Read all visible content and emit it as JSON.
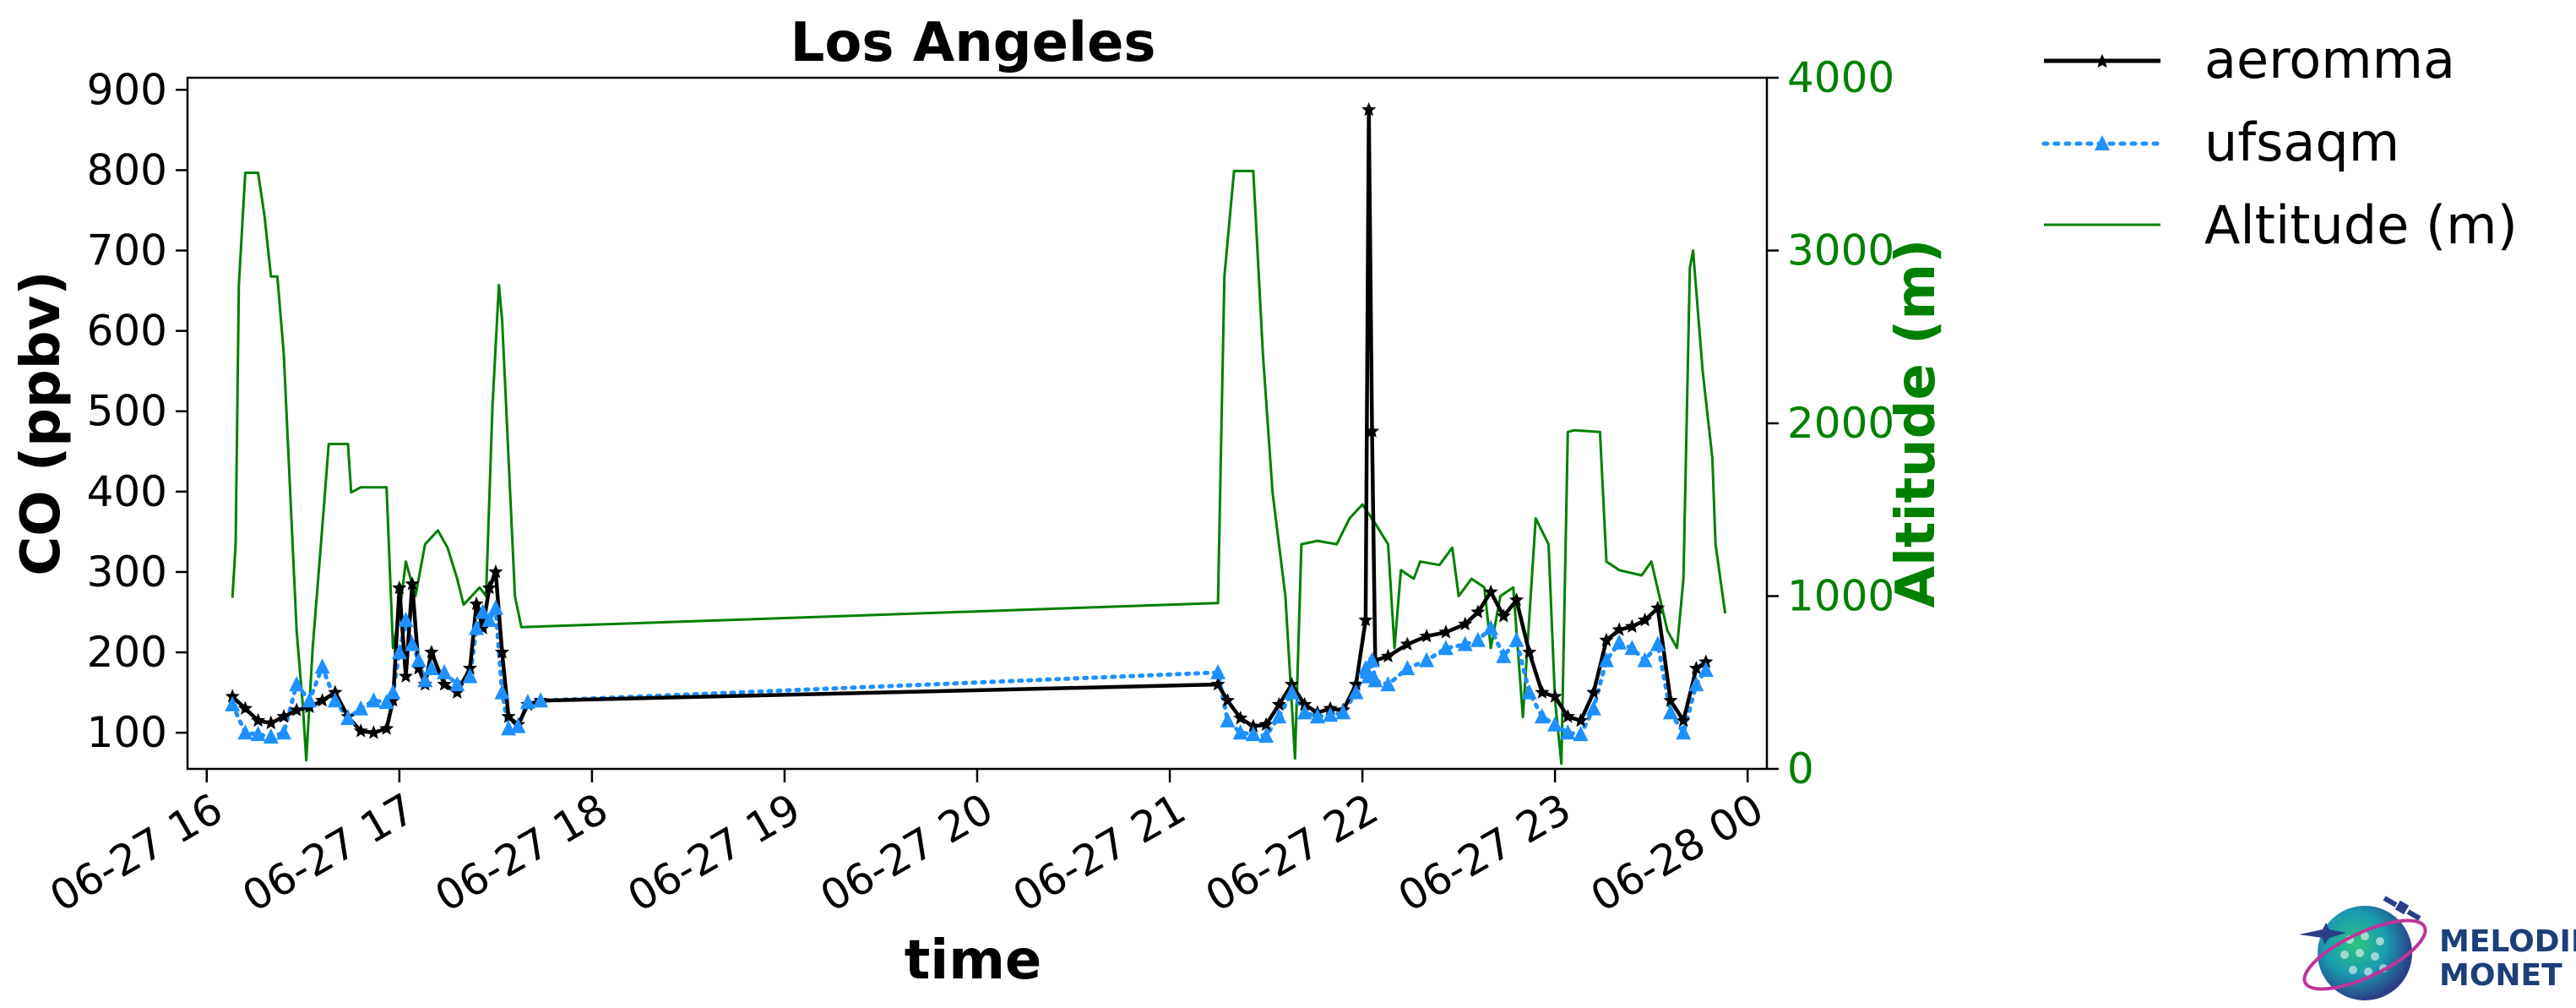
{
  "chart_data": {
    "type": "line",
    "title": "Los Angeles",
    "xlabel": "time",
    "ylabel": "CO (ppbv)",
    "y2label": "Altitude (m)",
    "xlim": [
      "06-27 15:54",
      "06-28 00:06"
    ],
    "ylim": [
      55,
      915
    ],
    "y2lim": [
      0,
      4000
    ],
    "x_ticks": [
      "06-27 16",
      "06-27 17",
      "06-27 18",
      "06-27 19",
      "06-27 20",
      "06-27 21",
      "06-27 22",
      "06-27 23",
      "06-28 00"
    ],
    "y_ticks": [
      100,
      200,
      300,
      400,
      500,
      600,
      700,
      800,
      900
    ],
    "y2_ticks": [
      0,
      1000,
      2000,
      3000,
      4000
    ],
    "legend_position": "outside upper right",
    "colors": {
      "aeromma": "#000000",
      "ufsaqm": "#1e90ff",
      "altitude": "#008000"
    },
    "series": [
      {
        "name": "aeromma",
        "axis": "left",
        "style": "solid line, star markers",
        "points": [
          [
            "06-27 16:08",
            145
          ],
          [
            "06-27 16:12",
            130
          ],
          [
            "06-27 16:16",
            115
          ],
          [
            "06-27 16:20",
            112
          ],
          [
            "06-27 16:24",
            120
          ],
          [
            "06-27 16:28",
            128
          ],
          [
            "06-27 16:32",
            132
          ],
          [
            "06-27 16:36",
            140
          ],
          [
            "06-27 16:40",
            150
          ],
          [
            "06-27 16:44",
            120
          ],
          [
            "06-27 16:48",
            102
          ],
          [
            "06-27 16:52",
            100
          ],
          [
            "06-27 16:56",
            105
          ],
          [
            "06-27 16:58",
            140
          ],
          [
            "06-27 17:00",
            280
          ],
          [
            "06-27 17:02",
            170
          ],
          [
            "06-27 17:04",
            285
          ],
          [
            "06-27 17:06",
            180
          ],
          [
            "06-27 17:08",
            160
          ],
          [
            "06-27 17:10",
            200
          ],
          [
            "06-27 17:14",
            160
          ],
          [
            "06-27 17:18",
            150
          ],
          [
            "06-27 17:22",
            180
          ],
          [
            "06-27 17:24",
            260
          ],
          [
            "06-27 17:26",
            230
          ],
          [
            "06-27 17:28",
            280
          ],
          [
            "06-27 17:30",
            300
          ],
          [
            "06-27 17:32",
            200
          ],
          [
            "06-27 17:34",
            120
          ],
          [
            "06-27 17:37",
            110
          ],
          [
            "06-27 17:40",
            135
          ],
          [
            "06-27 17:44",
            140
          ],
          [
            "06-27 21:15",
            160
          ],
          [
            "06-27 21:18",
            140
          ],
          [
            "06-27 21:22",
            118
          ],
          [
            "06-27 21:26",
            108
          ],
          [
            "06-27 21:30",
            110
          ],
          [
            "06-27 21:34",
            135
          ],
          [
            "06-27 21:38",
            160
          ],
          [
            "06-27 21:42",
            135
          ],
          [
            "06-27 21:46",
            125
          ],
          [
            "06-27 21:50",
            130
          ],
          [
            "06-27 21:54",
            128
          ],
          [
            "06-27 21:58",
            160
          ],
          [
            "06-27 22:01",
            240
          ],
          [
            "06-27 22:02",
            875
          ],
          [
            "06-27 22:03",
            475
          ],
          [
            "06-27 22:04",
            190
          ],
          [
            "06-27 22:08",
            195
          ],
          [
            "06-27 22:14",
            210
          ],
          [
            "06-27 22:20",
            220
          ],
          [
            "06-27 22:26",
            225
          ],
          [
            "06-27 22:32",
            235
          ],
          [
            "06-27 22:36",
            250
          ],
          [
            "06-27 22:40",
            275
          ],
          [
            "06-27 22:44",
            245
          ],
          [
            "06-27 22:48",
            265
          ],
          [
            "06-27 22:52",
            200
          ],
          [
            "06-27 22:56",
            150
          ],
          [
            "06-27 23:00",
            145
          ],
          [
            "06-27 23:04",
            120
          ],
          [
            "06-27 23:08",
            115
          ],
          [
            "06-27 23:12",
            150
          ],
          [
            "06-27 23:16",
            215
          ],
          [
            "06-27 23:20",
            228
          ],
          [
            "06-27 23:24",
            232
          ],
          [
            "06-27 23:28",
            240
          ],
          [
            "06-27 23:32",
            255
          ],
          [
            "06-27 23:36",
            140
          ],
          [
            "06-27 23:40",
            115
          ],
          [
            "06-27 23:44",
            180
          ],
          [
            "06-27 23:47",
            188
          ]
        ]
      },
      {
        "name": "ufsaqm",
        "axis": "left",
        "style": "dotted line, triangle markers",
        "points": [
          [
            "06-27 16:08",
            135
          ],
          [
            "06-27 16:12",
            100
          ],
          [
            "06-27 16:16",
            98
          ],
          [
            "06-27 16:20",
            95
          ],
          [
            "06-27 16:24",
            100
          ],
          [
            "06-27 16:28",
            160
          ],
          [
            "06-27 16:32",
            140
          ],
          [
            "06-27 16:36",
            182
          ],
          [
            "06-27 16:40",
            140
          ],
          [
            "06-27 16:44",
            118
          ],
          [
            "06-27 16:48",
            130
          ],
          [
            "06-27 16:52",
            140
          ],
          [
            "06-27 16:56",
            138
          ],
          [
            "06-27 16:58",
            150
          ],
          [
            "06-27 17:00",
            200
          ],
          [
            "06-27 17:02",
            240
          ],
          [
            "06-27 17:04",
            210
          ],
          [
            "06-27 17:06",
            190
          ],
          [
            "06-27 17:08",
            165
          ],
          [
            "06-27 17:10",
            180
          ],
          [
            "06-27 17:14",
            175
          ],
          [
            "06-27 17:18",
            160
          ],
          [
            "06-27 17:22",
            170
          ],
          [
            "06-27 17:24",
            230
          ],
          [
            "06-27 17:26",
            250
          ],
          [
            "06-27 17:28",
            240
          ],
          [
            "06-27 17:30",
            255
          ],
          [
            "06-27 17:32",
            150
          ],
          [
            "06-27 17:34",
            105
          ],
          [
            "06-27 17:37",
            108
          ],
          [
            "06-27 17:40",
            138
          ],
          [
            "06-27 17:44",
            140
          ],
          [
            "06-27 21:15",
            175
          ],
          [
            "06-27 21:18",
            115
          ],
          [
            "06-27 21:22",
            100
          ],
          [
            "06-27 21:26",
            98
          ],
          [
            "06-27 21:30",
            96
          ],
          [
            "06-27 21:34",
            120
          ],
          [
            "06-27 21:38",
            150
          ],
          [
            "06-27 21:42",
            125
          ],
          [
            "06-27 21:46",
            120
          ],
          [
            "06-27 21:50",
            122
          ],
          [
            "06-27 21:54",
            125
          ],
          [
            "06-27 21:58",
            150
          ],
          [
            "06-27 22:01",
            180
          ],
          [
            "06-27 22:02",
            170
          ],
          [
            "06-27 22:03",
            190
          ],
          [
            "06-27 22:04",
            165
          ],
          [
            "06-27 22:08",
            160
          ],
          [
            "06-27 22:14",
            180
          ],
          [
            "06-27 22:20",
            190
          ],
          [
            "06-27 22:26",
            205
          ],
          [
            "06-27 22:32",
            210
          ],
          [
            "06-27 22:36",
            215
          ],
          [
            "06-27 22:40",
            230
          ],
          [
            "06-27 22:44",
            195
          ],
          [
            "06-27 22:48",
            215
          ],
          [
            "06-27 22:52",
            150
          ],
          [
            "06-27 22:56",
            120
          ],
          [
            "06-27 23:00",
            110
          ],
          [
            "06-27 23:04",
            100
          ],
          [
            "06-27 23:08",
            98
          ],
          [
            "06-27 23:12",
            130
          ],
          [
            "06-27 23:16",
            190
          ],
          [
            "06-27 23:20",
            212
          ],
          [
            "06-27 23:24",
            205
          ],
          [
            "06-27 23:28",
            190
          ],
          [
            "06-27 23:32",
            210
          ],
          [
            "06-27 23:36",
            125
          ],
          [
            "06-27 23:40",
            100
          ],
          [
            "06-27 23:44",
            160
          ],
          [
            "06-27 23:47",
            178
          ]
        ]
      },
      {
        "name": "Altitude (m)",
        "axis": "right",
        "style": "solid thin line",
        "points": [
          [
            "06-27 16:08",
            990
          ],
          [
            "06-27 16:09",
            1300
          ],
          [
            "06-27 16:10",
            2800
          ],
          [
            "06-27 16:12",
            3450
          ],
          [
            "06-27 16:16",
            3450
          ],
          [
            "06-27 16:18",
            3200
          ],
          [
            "06-27 16:20",
            2850
          ],
          [
            "06-27 16:22",
            2850
          ],
          [
            "06-27 16:24",
            2400
          ],
          [
            "06-27 16:26",
            1600
          ],
          [
            "06-27 16:28",
            800
          ],
          [
            "06-27 16:30",
            350
          ],
          [
            "06-27 16:31",
            50
          ],
          [
            "06-27 16:33",
            700
          ],
          [
            "06-27 16:36",
            1400
          ],
          [
            "06-27 16:38",
            1880
          ],
          [
            "06-27 16:44",
            1880
          ],
          [
            "06-27 16:45",
            1600
          ],
          [
            "06-27 16:48",
            1630
          ],
          [
            "06-27 16:56",
            1630
          ],
          [
            "06-27 16:58",
            700
          ],
          [
            "06-27 17:00",
            900
          ],
          [
            "06-27 17:02",
            1200
          ],
          [
            "06-27 17:05",
            1000
          ],
          [
            "06-27 17:08",
            1300
          ],
          [
            "06-27 17:12",
            1380
          ],
          [
            "06-27 17:15",
            1280
          ],
          [
            "06-27 17:18",
            1100
          ],
          [
            "06-27 17:20",
            950
          ],
          [
            "06-27 17:25",
            1050
          ],
          [
            "06-27 17:27",
            1000
          ],
          [
            "06-27 17:29",
            2100
          ],
          [
            "06-27 17:31",
            2800
          ],
          [
            "06-27 17:32",
            2600
          ],
          [
            "06-27 17:34",
            1800
          ],
          [
            "06-27 17:36",
            1000
          ],
          [
            "06-27 17:38",
            820
          ],
          [
            "06-27 21:15",
            960
          ],
          [
            "06-27 21:17",
            2850
          ],
          [
            "06-27 21:20",
            3460
          ],
          [
            "06-27 21:26",
            3460
          ],
          [
            "06-27 21:29",
            2400
          ],
          [
            "06-27 21:32",
            1600
          ],
          [
            "06-27 21:36",
            1000
          ],
          [
            "06-27 21:39",
            60
          ],
          [
            "06-27 21:41",
            1300
          ],
          [
            "06-27 21:46",
            1320
          ],
          [
            "06-27 21:52",
            1300
          ],
          [
            "06-27 21:56",
            1450
          ],
          [
            "06-27 22:00",
            1530
          ],
          [
            "06-27 22:04",
            1420
          ],
          [
            "06-27 22:08",
            1300
          ],
          [
            "06-27 22:10",
            700
          ],
          [
            "06-27 22:12",
            1150
          ],
          [
            "06-27 22:16",
            1100
          ],
          [
            "06-27 22:18",
            1200
          ],
          [
            "06-27 22:24",
            1180
          ],
          [
            "06-27 22:28",
            1280
          ],
          [
            "06-27 22:30",
            1000
          ],
          [
            "06-27 22:34",
            1100
          ],
          [
            "06-27 22:38",
            1050
          ],
          [
            "06-27 22:40",
            700
          ],
          [
            "06-27 22:43",
            1000
          ],
          [
            "06-27 22:47",
            1050
          ],
          [
            "06-27 22:50",
            300
          ],
          [
            "06-27 22:54",
            1450
          ],
          [
            "06-27 22:58",
            1300
          ],
          [
            "06-27 23:00",
            400
          ],
          [
            "06-27 23:02",
            30
          ],
          [
            "06-27 23:04",
            1950
          ],
          [
            "06-27 23:06",
            1960
          ],
          [
            "06-27 23:14",
            1950
          ],
          [
            "06-27 23:16",
            1200
          ],
          [
            "06-27 23:20",
            1150
          ],
          [
            "06-27 23:27",
            1120
          ],
          [
            "06-27 23:30",
            1200
          ],
          [
            "06-27 23:35",
            800
          ],
          [
            "06-27 23:38",
            700
          ],
          [
            "06-27 23:40",
            1100
          ],
          [
            "06-27 23:42",
            2900
          ],
          [
            "06-27 23:43",
            3000
          ],
          [
            "06-27 23:46",
            2300
          ],
          [
            "06-27 23:49",
            1800
          ],
          [
            "06-27 23:50",
            1300
          ],
          [
            "06-27 23:53",
            900
          ]
        ]
      }
    ]
  },
  "logo": {
    "line1": "MELODIES",
    "line2": "MONET"
  }
}
